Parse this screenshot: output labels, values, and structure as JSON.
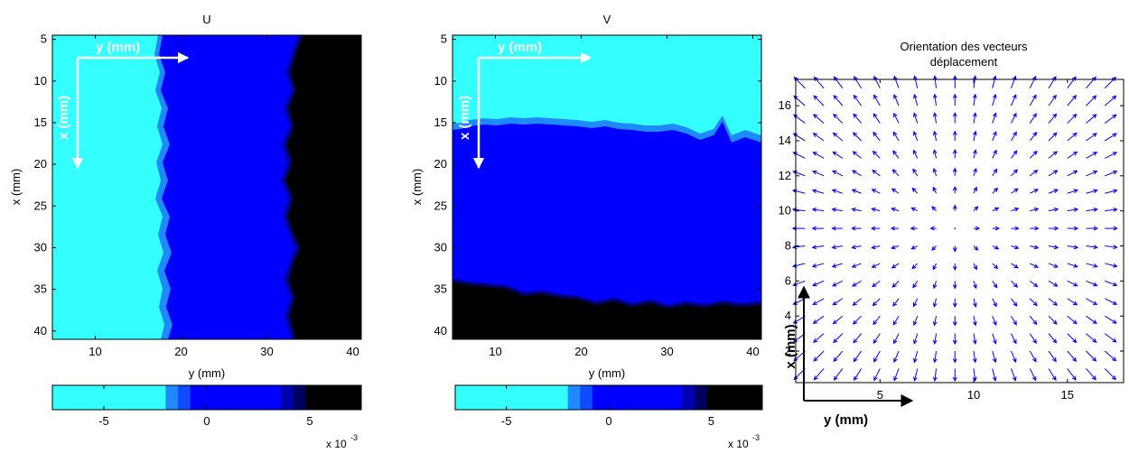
{
  "chart_data": [
    {
      "type": "heatmap",
      "title": "U",
      "xlabel": "y (mm)",
      "ylabel": "x (mm)",
      "x_ticks": [
        10,
        20,
        30,
        40
      ],
      "y_ticks": [
        5,
        10,
        15,
        20,
        25,
        30,
        35,
        40
      ],
      "xlim": [
        5,
        41
      ],
      "ylim": [
        4.5,
        41
      ],
      "y_reversed": true,
      "overlay_axes": {
        "x_label": "y (mm)",
        "y_label": "x (mm)"
      },
      "colorbar": {
        "ticks": [
          -5,
          0,
          5
        ],
        "ticks_display": [
          "-5",
          "0",
          "5"
        ],
        "range": [
          -7.5,
          7.5
        ],
        "exponent_base": "x 10",
        "exponent_power": "-3",
        "stops": [
          {
            "from": -7.5,
            "to": -2,
            "color": "#33ffff"
          },
          {
            "from": -2,
            "to": -1.4,
            "color": "#1f8aff"
          },
          {
            "from": -1.4,
            "to": -0.8,
            "color": "#0f4cff"
          },
          {
            "from": -0.8,
            "to": 3.6,
            "color": "#0000ff"
          },
          {
            "from": 3.6,
            "to": 4.2,
            "color": "#0000b0"
          },
          {
            "from": 4.2,
            "to": 4.8,
            "color": "#000060"
          },
          {
            "from": 4.8,
            "to": 7.5,
            "color": "#000000"
          }
        ]
      },
      "field": {
        "regions": [
          {
            "level": "low",
            "value_approx": -0.0065,
            "y_range_mm": [
              5,
              17.5
            ],
            "color": "#33ffff"
          },
          {
            "level": "mid",
            "value_approx": 0.0,
            "y_range_mm": [
              17.5,
              33
            ],
            "color": "#0000ff"
          },
          {
            "level": "high",
            "value_approx": 0.0065,
            "y_range_mm": [
              33,
              41
            ],
            "color": "#000000"
          }
        ]
      }
    },
    {
      "type": "heatmap",
      "title": "V",
      "xlabel": "y (mm)",
      "ylabel": "x (mm)",
      "x_ticks": [
        10,
        20,
        30,
        40
      ],
      "y_ticks": [
        5,
        10,
        15,
        20,
        25,
        30,
        35,
        40
      ],
      "xlim": [
        5,
        41
      ],
      "ylim": [
        4.5,
        41
      ],
      "y_reversed": true,
      "overlay_axes": {
        "x_label": "y (mm)",
        "y_label": "x (mm)"
      },
      "colorbar": {
        "ticks": [
          -5,
          0,
          5
        ],
        "ticks_display": [
          "-5",
          "0",
          "5"
        ],
        "range": [
          -7.5,
          7.5
        ],
        "exponent_base": "x 10",
        "exponent_power": "-3",
        "stops": [
          {
            "from": -7.5,
            "to": -2,
            "color": "#33ffff"
          },
          {
            "from": -2,
            "to": -1.4,
            "color": "#1f8aff"
          },
          {
            "from": -1.4,
            "to": -0.8,
            "color": "#0f4cff"
          },
          {
            "from": -0.8,
            "to": 3.6,
            "color": "#0000ff"
          },
          {
            "from": 3.6,
            "to": 4.2,
            "color": "#0000b0"
          },
          {
            "from": 4.2,
            "to": 4.8,
            "color": "#000060"
          },
          {
            "from": 4.8,
            "to": 7.5,
            "color": "#000000"
          }
        ]
      },
      "field": {
        "regions": [
          {
            "level": "low",
            "value_approx": -0.0065,
            "x_range_mm": [
              4.5,
              16.5
            ],
            "color": "#33ffff"
          },
          {
            "level": "mid",
            "value_approx": 0.0,
            "x_range_mm": [
              16.5,
              34
            ],
            "color": "#0000ff"
          },
          {
            "level": "high",
            "value_approx": 0.0065,
            "x_range_mm": [
              34,
              41
            ],
            "color": "#000000"
          }
        ]
      }
    },
    {
      "type": "quiver",
      "title": "Orientation des vecteurs déplacement",
      "title_lines": [
        "Orientation des vecteurs",
        "déplacement"
      ],
      "x_ticks": [
        5,
        10,
        15
      ],
      "y_ticks": [
        2,
        4,
        6,
        8,
        10,
        12,
        14,
        16
      ],
      "xlim": [
        0.5,
        18
      ],
      "ylim": [
        0.2,
        17.5
      ],
      "overlay_axes": {
        "x_label": "y (mm)",
        "y_label": "x (mm)"
      },
      "arrow_color": "#0000ff",
      "grid": {
        "x_start": 1,
        "x_step": 1,
        "x_count": 17,
        "y_start": 1,
        "y_step": 1,
        "y_count": 17
      },
      "field_center": [
        9,
        9
      ],
      "pattern": "radial outward from center"
    }
  ]
}
